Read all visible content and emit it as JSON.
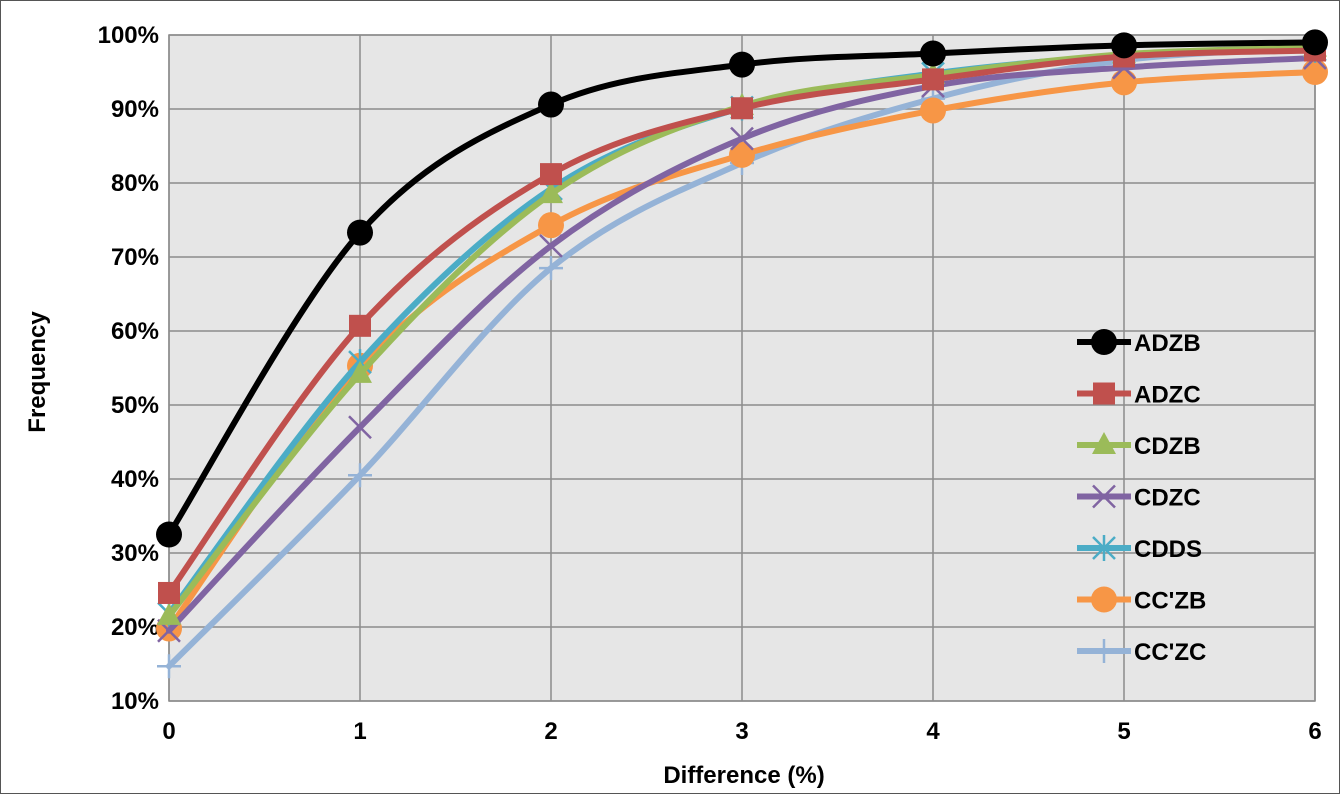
{
  "chart_data": {
    "type": "line",
    "title": "",
    "xlabel": "Difference (%)",
    "ylabel": "Frequency",
    "x": [
      0,
      1,
      2,
      3,
      4,
      5,
      6
    ],
    "x_ticks": [
      "0",
      "1",
      "2",
      "3",
      "4",
      "5",
      "6"
    ],
    "xlim": [
      0,
      6
    ],
    "ylim": [
      10,
      100
    ],
    "y_ticks": [
      "10%",
      "20%",
      "30%",
      "40%",
      "50%",
      "60%",
      "70%",
      "80%",
      "90%",
      "100%"
    ],
    "y_tick_values": [
      10,
      20,
      30,
      40,
      50,
      60,
      70,
      80,
      90,
      100
    ],
    "grid": true,
    "legend_position": "right",
    "background": "#e6e6e6",
    "series": [
      {
        "name": "ADZB",
        "marker": "circle",
        "color": "#000000",
        "values": [
          32.5,
          73.3,
          90.6,
          96.0,
          97.5,
          98.6,
          99.0
        ]
      },
      {
        "name": "ADZC",
        "marker": "square",
        "color": "#c0504d",
        "values": [
          24.6,
          60.7,
          81.2,
          90.1,
          94.0,
          97.1,
          97.9
        ]
      },
      {
        "name": "CDZB",
        "marker": "triangle",
        "color": "#9bbb59",
        "values": [
          21.5,
          54.2,
          78.5,
          90.4,
          94.6,
          97.4,
          98.3
        ]
      },
      {
        "name": "CDZC",
        "marker": "x",
        "color": "#8064a2",
        "values": [
          19.5,
          47.0,
          71.5,
          86.0,
          93.1,
          95.6,
          96.9
        ]
      },
      {
        "name": "CDDS",
        "marker": "star",
        "color": "#4bacc6",
        "values": [
          21.8,
          55.8,
          79.2,
          90.2,
          94.8,
          97.2,
          98.0
        ]
      },
      {
        "name": "CC'ZB",
        "marker": "circle",
        "color": "#f79646",
        "values": [
          19.8,
          55.3,
          74.3,
          83.8,
          89.8,
          93.6,
          95.0
        ]
      },
      {
        "name": "CC'ZC",
        "marker": "plus",
        "color": "#95b3d7",
        "values": [
          14.7,
          40.5,
          68.5,
          82.7,
          91.4,
          96.6,
          98.2
        ]
      }
    ]
  }
}
